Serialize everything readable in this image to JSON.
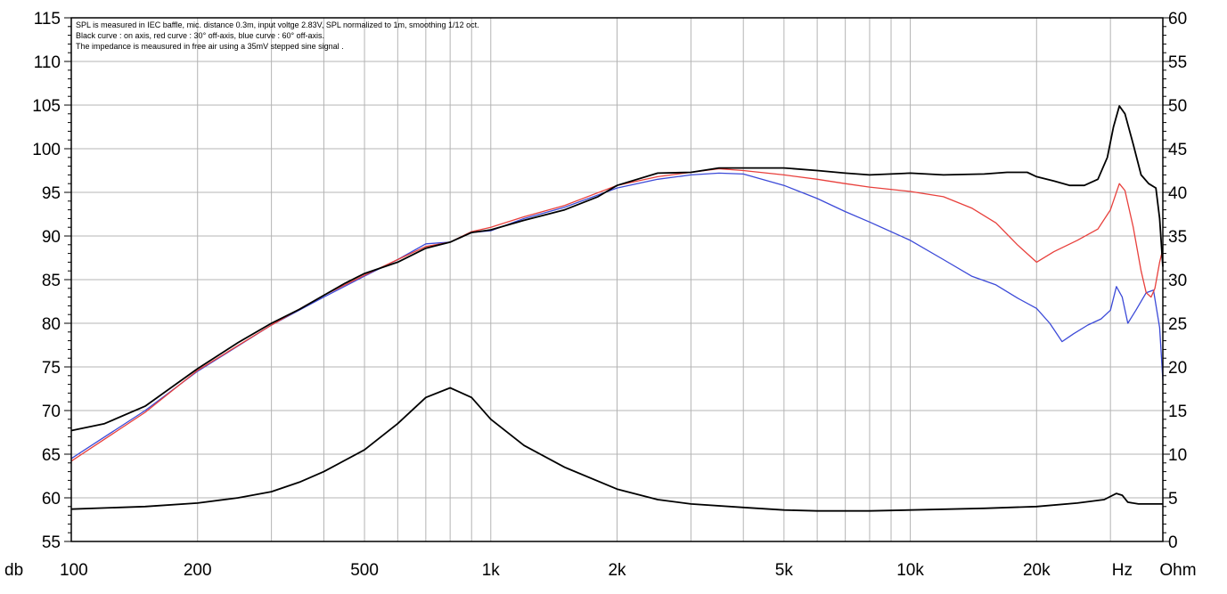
{
  "chart_data": {
    "type": "line",
    "annotations": [
      "SPL is measured in IEC baffle, mic. distance 0.3m, input voltge 2.83V, SPL normalized to 1m, smoothing 1/12 oct.",
      "Black curve : on axis, red curve : 30° off-axis, blue curve : 60° off-axis.",
      "The impedance is meausured in free air using a 35mV stepped sine signal ."
    ],
    "x_scale": "log",
    "xlim": [
      100,
      40000
    ],
    "x_ticks": [
      {
        "value": 100,
        "label": "100"
      },
      {
        "value": 200,
        "label": "200"
      },
      {
        "value": 500,
        "label": "500"
      },
      {
        "value": 1000,
        "label": "1k"
      },
      {
        "value": 2000,
        "label": "2k"
      },
      {
        "value": 5000,
        "label": "5k"
      },
      {
        "value": 10000,
        "label": "10k"
      },
      {
        "value": 20000,
        "label": "20k"
      }
    ],
    "x_unit_label": "Hz",
    "y_left_unit_label": "db",
    "y_right_unit_label": "Ohm",
    "y_left_lim": [
      55,
      115
    ],
    "y_left_ticks": [
      55,
      60,
      65,
      70,
      75,
      80,
      85,
      90,
      95,
      100,
      105,
      110,
      115
    ],
    "y_right_lim": [
      0,
      60
    ],
    "y_right_ticks": [
      0,
      5,
      10,
      15,
      20,
      25,
      30,
      35,
      40,
      45,
      50,
      55,
      60
    ],
    "grid": true,
    "colors": {
      "on_axis": "#000000",
      "off_30": "#e8403c",
      "off_60": "#3c4ad8",
      "impedance": "#000000"
    },
    "series": [
      {
        "axis": "left",
        "color": "#000000",
        "points": [
          [
            100,
            67.7
          ],
          [
            120,
            68.5
          ],
          [
            150,
            70.5
          ],
          [
            200,
            74.8
          ],
          [
            250,
            77.8
          ],
          [
            300,
            80
          ],
          [
            350,
            81.6
          ],
          [
            400,
            83.2
          ],
          [
            450,
            84.6
          ],
          [
            500,
            85.7
          ],
          [
            600,
            87
          ],
          [
            700,
            88.6
          ],
          [
            800,
            89.3
          ],
          [
            900,
            90.4
          ],
          [
            1000,
            90.7
          ],
          [
            1200,
            91.8
          ],
          [
            1500,
            93
          ],
          [
            1800,
            94.5
          ],
          [
            2000,
            95.8
          ],
          [
            2500,
            97.2
          ],
          [
            3000,
            97.3
          ],
          [
            3500,
            97.8
          ],
          [
            4000,
            97.8
          ],
          [
            5000,
            97.8
          ],
          [
            6000,
            97.5
          ],
          [
            7000,
            97.2
          ],
          [
            8000,
            97
          ],
          [
            10000,
            97.2
          ],
          [
            12000,
            97
          ],
          [
            15000,
            97.1
          ],
          [
            17000,
            97.3
          ],
          [
            19000,
            97.3
          ],
          [
            20000,
            96.8
          ],
          [
            22000,
            96.3
          ],
          [
            24000,
            95.8
          ],
          [
            26000,
            95.8
          ],
          [
            28000,
            96.5
          ],
          [
            29500,
            99
          ],
          [
            30500,
            102.5
          ],
          [
            31500,
            104.9
          ],
          [
            32500,
            104
          ],
          [
            34000,
            100.5
          ],
          [
            35500,
            97
          ],
          [
            37000,
            96
          ],
          [
            38500,
            95.5
          ],
          [
            39300,
            92
          ],
          [
            40000,
            86.5
          ]
        ]
      },
      {
        "axis": "left",
        "color": "#e8403c",
        "points": [
          [
            100,
            64.2
          ],
          [
            150,
            69.8
          ],
          [
            200,
            74.6
          ],
          [
            300,
            79.8
          ],
          [
            400,
            83.2
          ],
          [
            500,
            85.5
          ],
          [
            600,
            87.3
          ],
          [
            700,
            88.8
          ],
          [
            800,
            89.3
          ],
          [
            900,
            90.5
          ],
          [
            1000,
            91
          ],
          [
            1200,
            92.2
          ],
          [
            1500,
            93.5
          ],
          [
            2000,
            95.8
          ],
          [
            2500,
            96.8
          ],
          [
            3000,
            97.3
          ],
          [
            3500,
            97.7
          ],
          [
            4000,
            97.5
          ],
          [
            5000,
            97
          ],
          [
            6000,
            96.5
          ],
          [
            7000,
            96
          ],
          [
            8000,
            95.6
          ],
          [
            10000,
            95.1
          ],
          [
            12000,
            94.5
          ],
          [
            14000,
            93.2
          ],
          [
            16000,
            91.5
          ],
          [
            18000,
            89
          ],
          [
            20000,
            87
          ],
          [
            22000,
            88.2
          ],
          [
            25000,
            89.5
          ],
          [
            28000,
            90.8
          ],
          [
            30000,
            93
          ],
          [
            31500,
            96
          ],
          [
            32500,
            95.2
          ],
          [
            34000,
            91
          ],
          [
            35500,
            86
          ],
          [
            36500,
            83.5
          ],
          [
            37500,
            83
          ],
          [
            38300,
            84
          ],
          [
            39300,
            87
          ],
          [
            40000,
            88.5
          ]
        ]
      },
      {
        "axis": "left",
        "color": "#3c4ad8",
        "points": [
          [
            100,
            64.5
          ],
          [
            150,
            70
          ],
          [
            200,
            74.5
          ],
          [
            300,
            79.8
          ],
          [
            400,
            83
          ],
          [
            500,
            85.4
          ],
          [
            600,
            87.3
          ],
          [
            700,
            89.1
          ],
          [
            800,
            89.3
          ],
          [
            900,
            90.4
          ],
          [
            1000,
            90.6
          ],
          [
            1200,
            92
          ],
          [
            1500,
            93.3
          ],
          [
            2000,
            95.5
          ],
          [
            2500,
            96.5
          ],
          [
            3000,
            97
          ],
          [
            3500,
            97.2
          ],
          [
            4000,
            97.1
          ],
          [
            5000,
            95.8
          ],
          [
            6000,
            94.3
          ],
          [
            7000,
            92.8
          ],
          [
            8000,
            91.6
          ],
          [
            10000,
            89.5
          ],
          [
            12000,
            87.3
          ],
          [
            14000,
            85.4
          ],
          [
            16000,
            84.4
          ],
          [
            18000,
            82.9
          ],
          [
            20000,
            81.7
          ],
          [
            21500,
            80
          ],
          [
            23000,
            77.9
          ],
          [
            24500,
            78.8
          ],
          [
            26500,
            79.8
          ],
          [
            28500,
            80.5
          ],
          [
            30000,
            81.5
          ],
          [
            31000,
            84.2
          ],
          [
            32000,
            83
          ],
          [
            33000,
            80
          ],
          [
            34500,
            81.5
          ],
          [
            36500,
            83.5
          ],
          [
            38000,
            83.8
          ],
          [
            39300,
            79.5
          ],
          [
            40000,
            73.5
          ]
        ]
      },
      {
        "axis": "right",
        "color": "#000000",
        "points": [
          [
            100,
            3.7
          ],
          [
            150,
            4
          ],
          [
            200,
            4.4
          ],
          [
            250,
            5
          ],
          [
            300,
            5.7
          ],
          [
            350,
            6.8
          ],
          [
            400,
            8
          ],
          [
            500,
            10.5
          ],
          [
            600,
            13.5
          ],
          [
            700,
            16.5
          ],
          [
            800,
            17.6
          ],
          [
            900,
            16.5
          ],
          [
            1000,
            14
          ],
          [
            1200,
            11
          ],
          [
            1500,
            8.5
          ],
          [
            2000,
            6
          ],
          [
            2500,
            4.8
          ],
          [
            3000,
            4.3
          ],
          [
            4000,
            3.9
          ],
          [
            5000,
            3.6
          ],
          [
            6000,
            3.5
          ],
          [
            8000,
            3.5
          ],
          [
            10000,
            3.6
          ],
          [
            15000,
            3.8
          ],
          [
            20000,
            4
          ],
          [
            25000,
            4.4
          ],
          [
            29000,
            4.8
          ],
          [
            31000,
            5.5
          ],
          [
            32000,
            5.3
          ],
          [
            33000,
            4.5
          ],
          [
            35000,
            4.3
          ],
          [
            40000,
            4.3
          ]
        ]
      }
    ]
  }
}
